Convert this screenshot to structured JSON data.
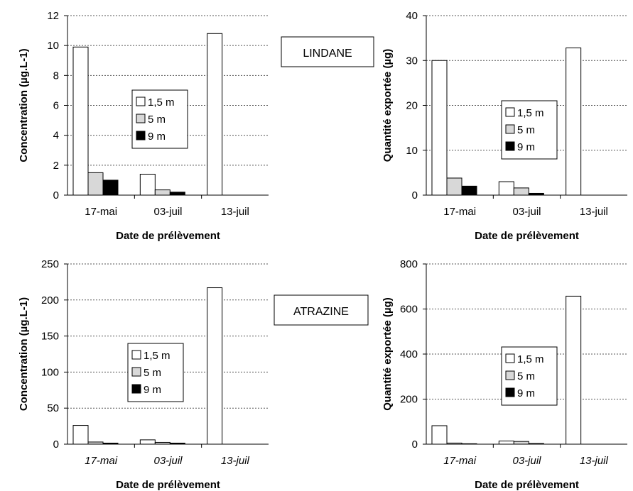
{
  "labels": {
    "lindane": "LINDANE",
    "atrazine": "ATRAZINE"
  },
  "colors": {
    "s1": "#ffffff",
    "s2": "#d8d8d8",
    "s3": "#000000"
  },
  "chart_data": [
    {
      "type": "bar",
      "xlabel": "Date de prélèvement",
      "ylabel": "Concentration (µg.L-1)",
      "ylim": [
        0,
        12
      ],
      "yticks": [
        "0",
        "2",
        "4",
        "6",
        "8",
        "10",
        "12"
      ],
      "categories": [
        "17-mai",
        "03-juil",
        "13-juil"
      ],
      "series": [
        {
          "name": "1,5 m",
          "values": [
            9.9,
            1.4,
            10.8
          ]
        },
        {
          "name": "5 m",
          "values": [
            1.5,
            0.35,
            0
          ]
        },
        {
          "name": "9 m",
          "values": [
            1.0,
            0.2,
            0
          ]
        }
      ],
      "grid": true,
      "legend": "center"
    },
    {
      "type": "bar",
      "xlabel": "Date de prélèvement",
      "ylabel": "Quantité exportée (µg)",
      "ylim": [
        0,
        40
      ],
      "yticks": [
        "0",
        "10",
        "20",
        "30",
        "40"
      ],
      "categories": [
        "17-mai",
        "03-juil",
        "13-juil"
      ],
      "series": [
        {
          "name": "1,5 m",
          "values": [
            30,
            3,
            32.8
          ]
        },
        {
          "name": "5 m",
          "values": [
            3.8,
            1.6,
            0
          ]
        },
        {
          "name": "9 m",
          "values": [
            2.0,
            0.4,
            0
          ]
        }
      ],
      "grid": true,
      "legend": "center"
    },
    {
      "type": "bar",
      "xlabel": "Date de prélèvement",
      "ylabel": "Concentration (µg.L-1)",
      "ylim": [
        0,
        250
      ],
      "yticks": [
        "0",
        "50",
        "100",
        "150",
        "200",
        "250"
      ],
      "categories": [
        "17-mai",
        "03-juil",
        "13-juil"
      ],
      "series": [
        {
          "name": "1,5 m",
          "values": [
            26,
            6,
            217
          ]
        },
        {
          "name": "5 m",
          "values": [
            3,
            2.5,
            0
          ]
        },
        {
          "name": "9 m",
          "values": [
            1.5,
            1.5,
            0
          ]
        }
      ],
      "grid": true,
      "legend": "center"
    },
    {
      "type": "bar",
      "xlabel": "Date de prélèvement",
      "ylabel": "Quantité exportée (µg)",
      "ylim": [
        0,
        800
      ],
      "yticks": [
        "0",
        "200",
        "400",
        "600",
        "800"
      ],
      "categories": [
        "17-mai",
        "03-juil",
        "13-juil"
      ],
      "series": [
        {
          "name": "1,5 m",
          "values": [
            82,
            14,
            657
          ]
        },
        {
          "name": "5 m",
          "values": [
            5,
            12,
            0
          ]
        },
        {
          "name": "9 m",
          "values": [
            2,
            3,
            0
          ]
        }
      ],
      "grid": true,
      "legend": "center"
    }
  ]
}
